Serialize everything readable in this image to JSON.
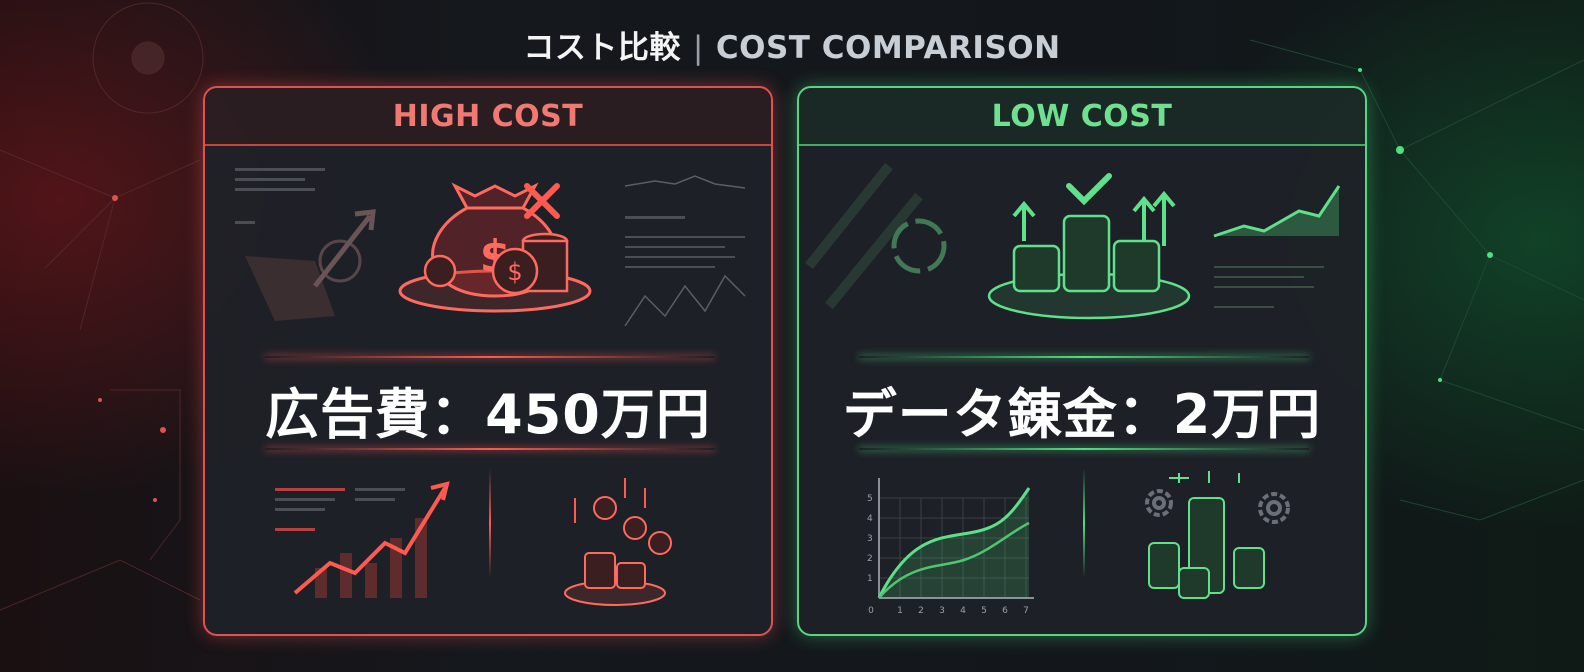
{
  "title": {
    "jp": "コスト比較",
    "separator": "|",
    "en": "COST COMPARISON"
  },
  "colors": {
    "high_cost": "#e0524f",
    "low_cost": "#55d680",
    "background": "#14171c"
  },
  "panels": {
    "high": {
      "header": "HIGH COST",
      "amount_label": "広告費：450万円",
      "icons": [
        "money-bag-icon",
        "x-mark-icon",
        "coin-stack-icon",
        "rising-chart-icon",
        "falling-coins-icon"
      ]
    },
    "low": {
      "header": "LOW COST",
      "amount_label": "データ錬金：2万円",
      "icons": [
        "checkmark-icon",
        "coin-stack-icon",
        "up-arrow-icon",
        "growth-chart-icon",
        "gear-icon"
      ],
      "mini_chart": {
        "y_ticks": [
          "1",
          "2",
          "3",
          "4",
          "5"
        ],
        "x_ticks": [
          "0",
          "1",
          "2",
          "3",
          "4",
          "5",
          "6",
          "7"
        ]
      }
    }
  }
}
